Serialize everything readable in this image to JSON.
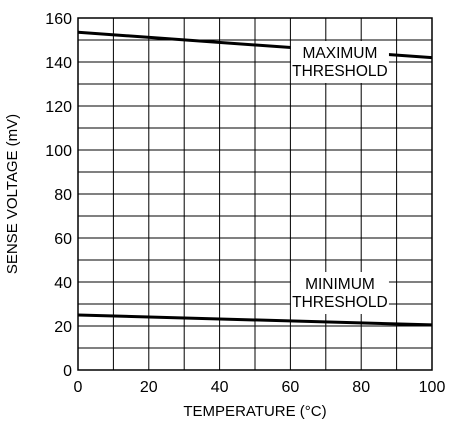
{
  "chart_data": {
    "type": "line",
    "title": "",
    "xlabel": "TEMPERATURE (°C)",
    "ylabel": "SENSE VOLTAGE (mV)",
    "xlim": [
      0,
      100
    ],
    "ylim": [
      0,
      160
    ],
    "x_ticks": [
      "0",
      "20",
      "40",
      "60",
      "80",
      "100"
    ],
    "y_ticks": [
      "0",
      "20",
      "40",
      "60",
      "80",
      "100",
      "120",
      "140",
      "160"
    ],
    "x_minor_step": 10,
    "y_minor_step": 10,
    "grid": true,
    "series": [
      {
        "label_lines": [
          "MAXIMUM",
          "THRESHOLD"
        ],
        "label_at": {
          "x": 74,
          "y": 140
        },
        "x": [
          0,
          100
        ],
        "y": [
          153.5,
          142
        ]
      },
      {
        "label_lines": [
          "MINIMUM",
          "THRESHOLD"
        ],
        "label_at": {
          "x": 74,
          "y": 35
        },
        "x": [
          0,
          100
        ],
        "y": [
          25,
          20.5
        ]
      }
    ]
  }
}
